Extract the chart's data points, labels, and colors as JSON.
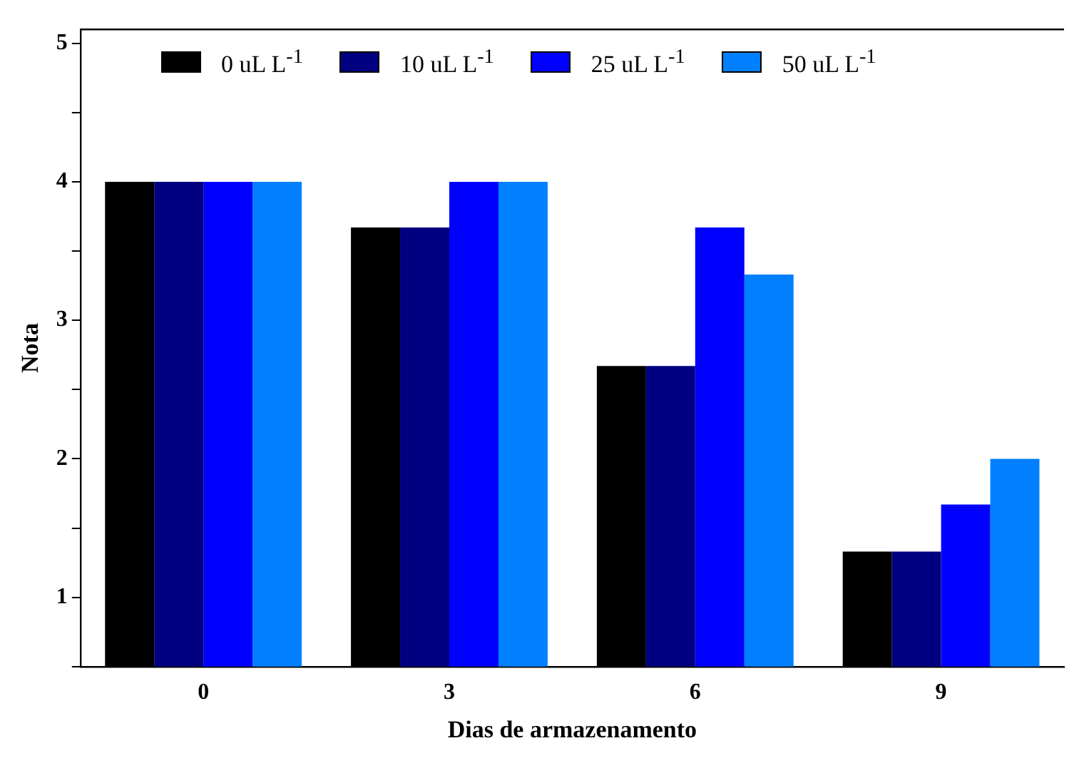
{
  "chart_data": {
    "type": "bar",
    "xlabel": "Dias de armazenamento",
    "ylabel": "Nota",
    "categories": [
      "0",
      "3",
      "6",
      "9"
    ],
    "series": [
      {
        "name": "0 uL L$^{-1}$",
        "color": "#000000",
        "values": [
          4,
          3.67,
          2.67,
          1.33
        ]
      },
      {
        "name": "10 uL L$^{-1}$",
        "color": "#000080",
        "values": [
          4,
          3.67,
          2.67,
          1.33
        ]
      },
      {
        "name": "25 uL L$^{-1}$",
        "color": "#0000ff",
        "values": [
          4,
          4,
          3.67,
          1.67
        ]
      },
      {
        "name": "50 uL L$^{-1}$",
        "color": "#0080ff",
        "values": [
          4,
          4,
          3.33,
          2
        ]
      }
    ],
    "ylim": [
      0.5,
      5.1
    ],
    "yticks": [
      {
        "value": 0.5,
        "label": null
      },
      1,
      {
        "value": 1.5,
        "label": null
      },
      2,
      {
        "value": 2.5,
        "label": null
      },
      3,
      {
        "value": 3.5,
        "label": null
      },
      4,
      {
        "value": 4.5,
        "label": null
      },
      5
    ],
    "grid": false,
    "legend": "top left"
  }
}
